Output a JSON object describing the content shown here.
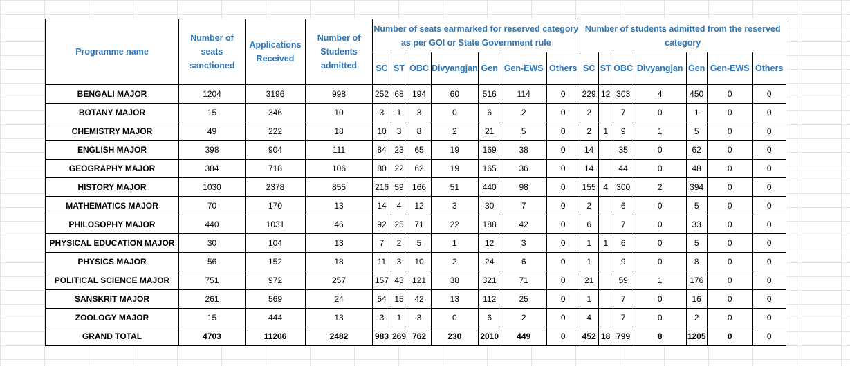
{
  "headers": {
    "programme": "Programme name",
    "seats": "Number of seats sanctioned",
    "applications": "Applications Received",
    "admitted": "Number of Students admitted",
    "earmarked_group": "Number of seats earmarked for reserved category as per GOI or State Government rule",
    "admitted_group": "Number of students admitted from the reserved category",
    "sub": [
      "SC",
      "ST",
      "OBC",
      "Divyangjan",
      "Gen",
      "Gen-EWS",
      "Others"
    ]
  },
  "rows": [
    {
      "name": "BENGALI MAJOR",
      "seats": "1204",
      "apps": "3196",
      "admitted": "998",
      "ear": [
        "252",
        "68",
        "194",
        "60",
        "516",
        "114",
        "0"
      ],
      "adm": [
        "229",
        "12",
        "303",
        "4",
        "450",
        "0",
        "0"
      ]
    },
    {
      "name": "BOTANY MAJOR",
      "seats": "15",
      "apps": "346",
      "admitted": "10",
      "ear": [
        "3",
        "1",
        "3",
        "0",
        "6",
        "2",
        "0"
      ],
      "adm": [
        "2",
        "",
        "7",
        "0",
        "1",
        "0",
        "0"
      ]
    },
    {
      "name": "CHEMISTRY MAJOR",
      "seats": "49",
      "apps": "222",
      "admitted": "18",
      "ear": [
        "10",
        "3",
        "8",
        "2",
        "21",
        "5",
        "0"
      ],
      "adm": [
        "2",
        "1",
        "9",
        "1",
        "5",
        "0",
        "0"
      ]
    },
    {
      "name": "ENGLISH MAJOR",
      "seats": "398",
      "apps": "904",
      "admitted": "111",
      "ear": [
        "84",
        "23",
        "65",
        "19",
        "169",
        "38",
        "0"
      ],
      "adm": [
        "14",
        "",
        "35",
        "0",
        "62",
        "0",
        "0"
      ]
    },
    {
      "name": "GEOGRAPHY MAJOR",
      "seats": "384",
      "apps": "718",
      "admitted": "106",
      "ear": [
        "80",
        "22",
        "62",
        "19",
        "165",
        "36",
        "0"
      ],
      "adm": [
        "14",
        "",
        "44",
        "0",
        "48",
        "0",
        "0"
      ]
    },
    {
      "name": "HISTORY MAJOR",
      "seats": "1030",
      "apps": "2378",
      "admitted": "855",
      "ear": [
        "216",
        "59",
        "166",
        "51",
        "440",
        "98",
        "0"
      ],
      "adm": [
        "155",
        "4",
        "300",
        "2",
        "394",
        "0",
        "0"
      ]
    },
    {
      "name": "MATHEMATICS MAJOR",
      "seats": "70",
      "apps": "170",
      "admitted": "13",
      "ear": [
        "14",
        "4",
        "12",
        "3",
        "30",
        "7",
        "0"
      ],
      "adm": [
        "2",
        "",
        "6",
        "0",
        "5",
        "0",
        "0"
      ]
    },
    {
      "name": "PHILOSOPHY MAJOR",
      "seats": "440",
      "apps": "1031",
      "admitted": "46",
      "ear": [
        "92",
        "25",
        "71",
        "22",
        "188",
        "42",
        "0"
      ],
      "adm": [
        "6",
        "",
        "7",
        "0",
        "33",
        "0",
        "0"
      ]
    },
    {
      "name": "PHYSICAL EDUCATION MAJOR",
      "seats": "30",
      "apps": "104",
      "admitted": "13",
      "ear": [
        "7",
        "2",
        "5",
        "1",
        "12",
        "3",
        "0"
      ],
      "adm": [
        "1",
        "1",
        "6",
        "0",
        "5",
        "0",
        "0"
      ]
    },
    {
      "name": "PHYSICS MAJOR",
      "seats": "56",
      "apps": "152",
      "admitted": "18",
      "ear": [
        "11",
        "3",
        "10",
        "2",
        "24",
        "6",
        "0"
      ],
      "adm": [
        "1",
        "",
        "9",
        "0",
        "8",
        "0",
        "0"
      ]
    },
    {
      "name": "POLITICAL SCIENCE MAJOR",
      "seats": "751",
      "apps": "972",
      "admitted": "257",
      "ear": [
        "157",
        "43",
        "121",
        "38",
        "321",
        "71",
        "0"
      ],
      "adm": [
        "21",
        "",
        "59",
        "1",
        "176",
        "0",
        "0"
      ]
    },
    {
      "name": "SANSKRIT MAJOR",
      "seats": "261",
      "apps": "569",
      "admitted": "24",
      "ear": [
        "54",
        "15",
        "42",
        "13",
        "112",
        "25",
        "0"
      ],
      "adm": [
        "1",
        "",
        "7",
        "0",
        "16",
        "0",
        "0"
      ]
    },
    {
      "name": "ZOOLOGY MAJOR",
      "seats": "15",
      "apps": "444",
      "admitted": "13",
      "ear": [
        "3",
        "1",
        "3",
        "0",
        "6",
        "2",
        "0"
      ],
      "adm": [
        "4",
        "",
        "7",
        "0",
        "2",
        "0",
        "0"
      ]
    }
  ],
  "total": {
    "name": "GRAND TOTAL",
    "seats": "4703",
    "apps": "11206",
    "admitted": "2482",
    "ear": [
      "983",
      "269",
      "762",
      "230",
      "2010",
      "449",
      "0"
    ],
    "adm": [
      "452",
      "18",
      "799",
      "8",
      "1205",
      "0",
      "0"
    ]
  }
}
